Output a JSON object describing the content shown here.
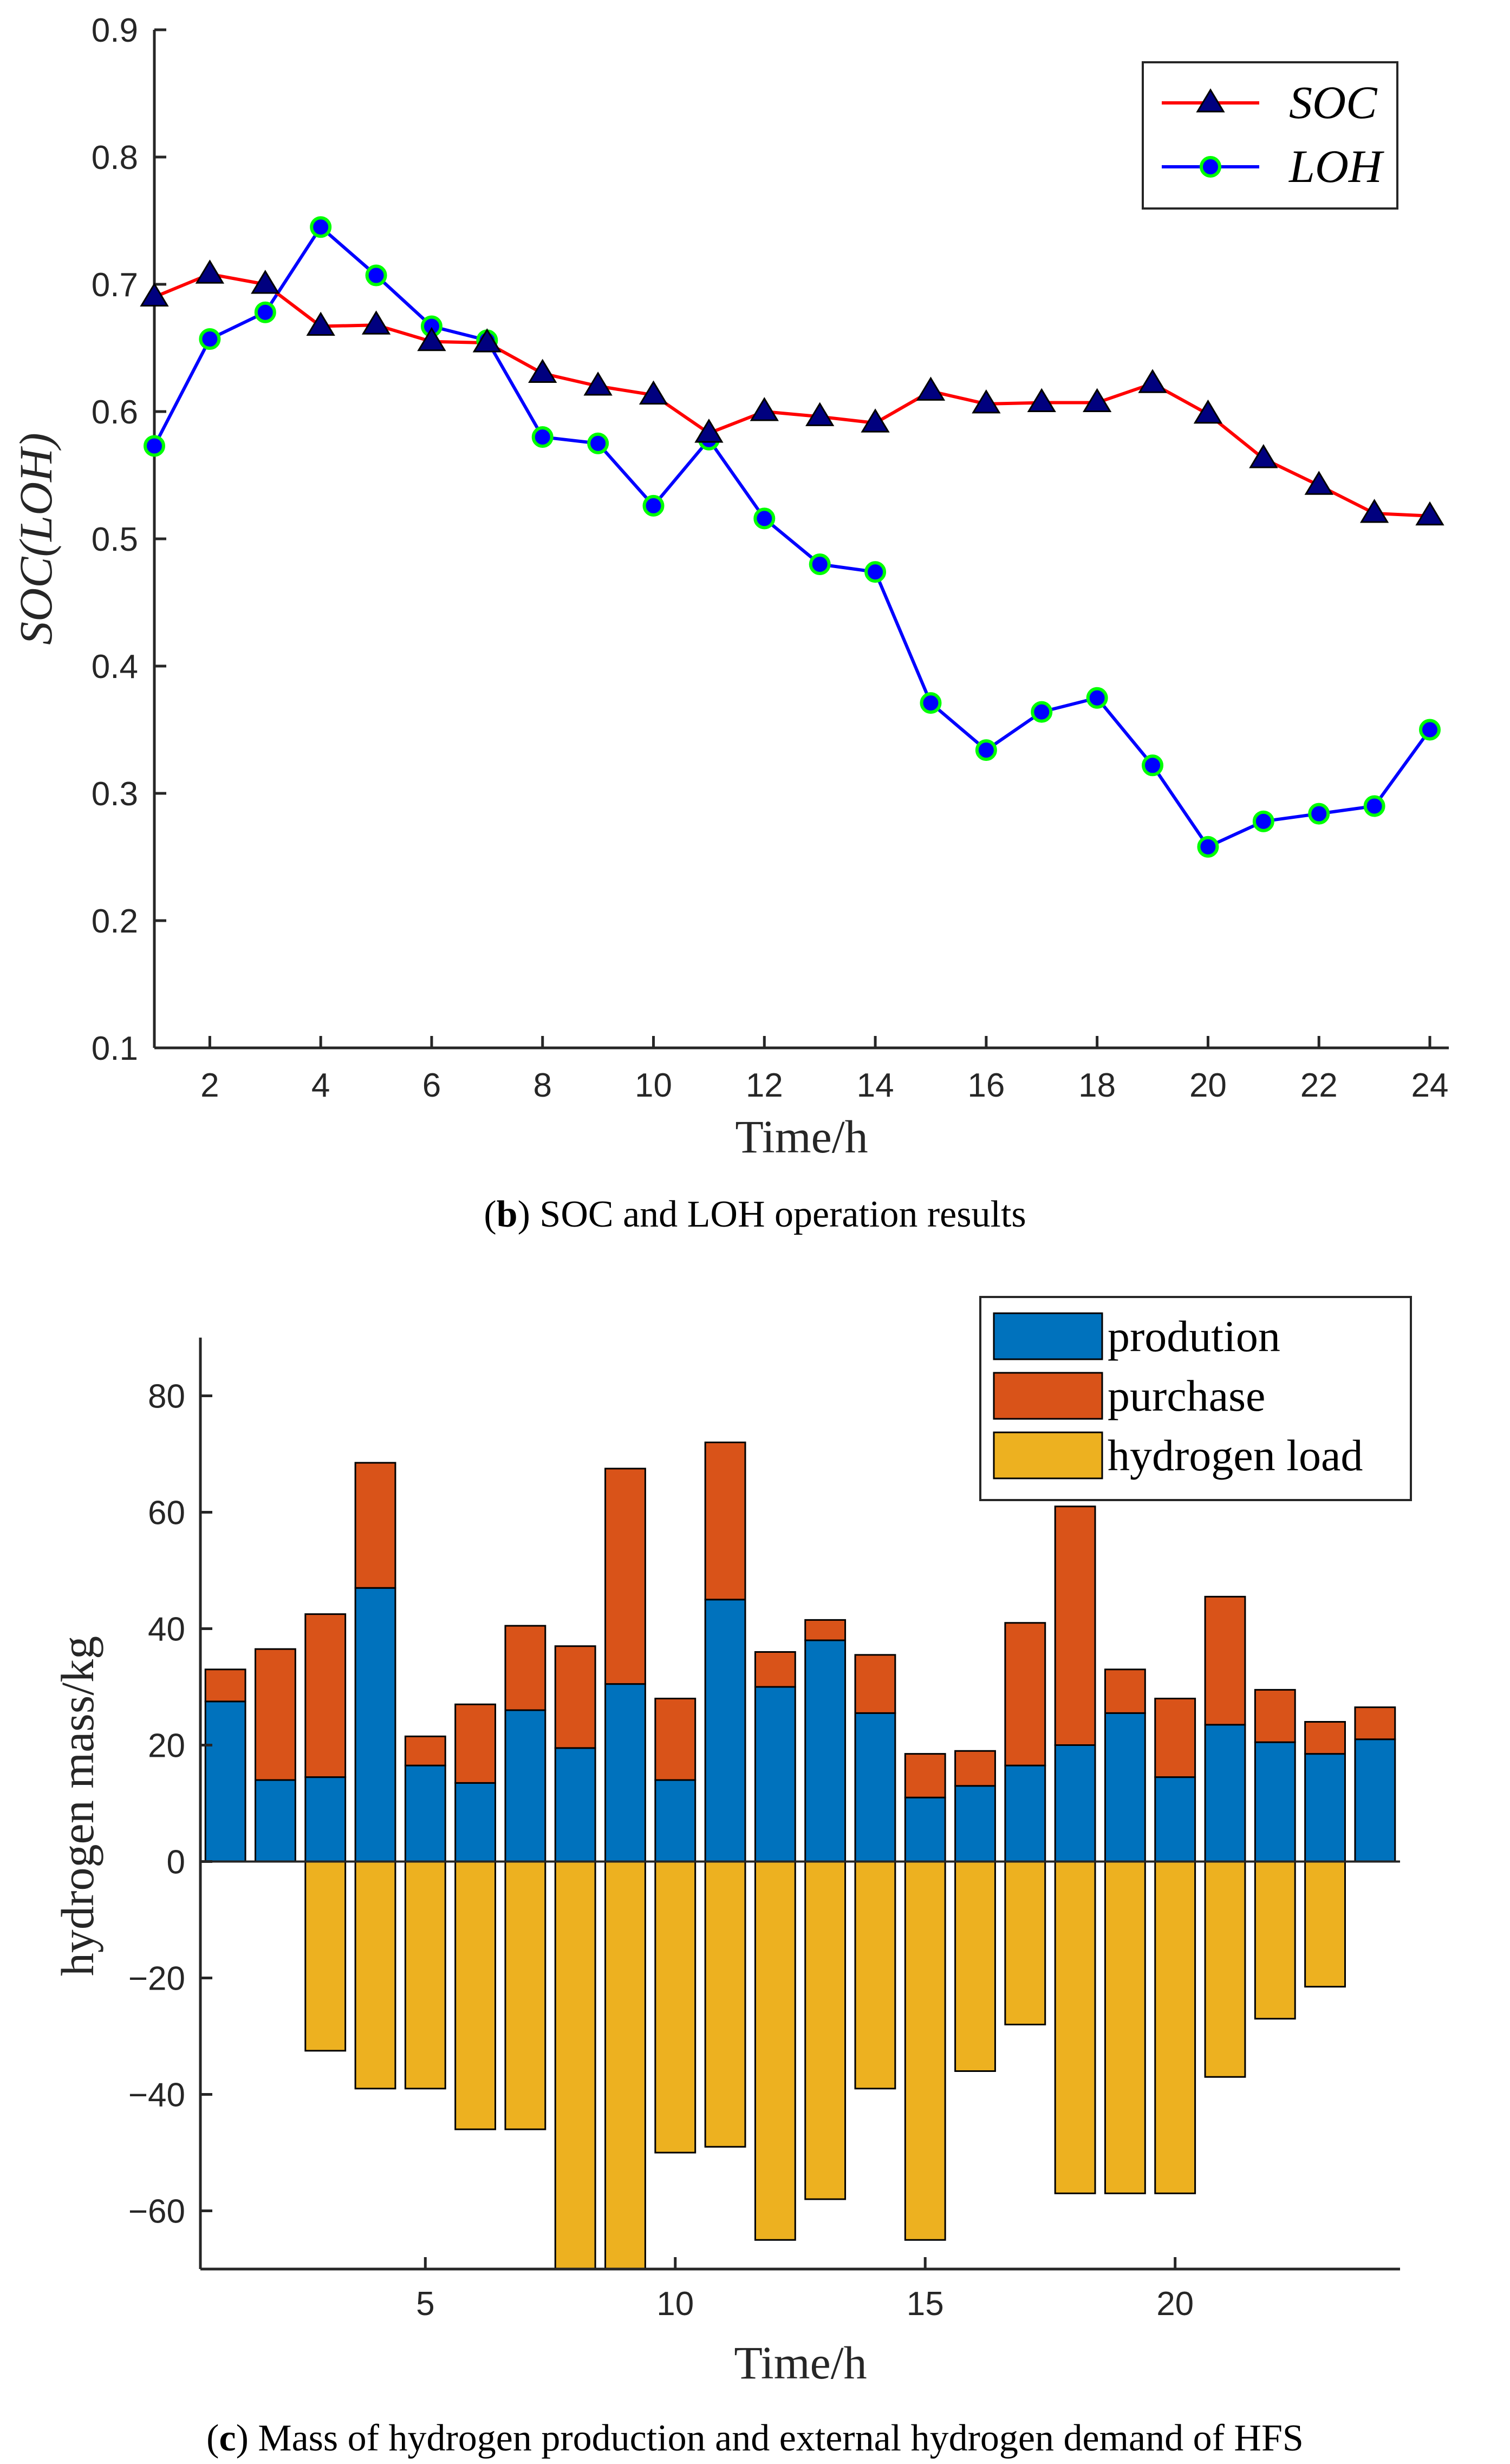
{
  "colors": {
    "soc_line": "#ff0000",
    "soc_marker": "#00007f",
    "loh_line": "#0000ff",
    "loh_marker_edge": "#00ff00",
    "loh_marker_face": "#0000ff",
    "production": "#0072bd",
    "purchase": "#d95319",
    "hydrogen_load": "#edb120",
    "axis": "#262626"
  },
  "chart_data": [
    {
      "type": "line",
      "panel": "b",
      "caption_label": "b",
      "caption_text": ") SOC and LOH operation results",
      "xlabel": "Time/h",
      "ylabel_main": "SOC(",
      "ylabel_inner": "LOH",
      "ylabel_close": ")",
      "xlim": [
        1,
        24
      ],
      "ylim": [
        0.1,
        0.9
      ],
      "xticks": [
        2,
        4,
        6,
        8,
        10,
        12,
        14,
        16,
        18,
        20,
        22,
        24
      ],
      "xtick_labels": [
        "2",
        "4",
        "6",
        "8",
        "10",
        "12",
        "14",
        "16",
        "18",
        "20",
        "22",
        "24"
      ],
      "yticks": [
        0.1,
        0.2,
        0.3,
        0.4,
        0.5,
        0.6,
        0.7,
        0.8,
        0.9
      ],
      "ytick_labels": [
        "0.1",
        "0.2",
        "0.3",
        "0.4",
        "0.5",
        "0.6",
        "0.7",
        "0.8",
        "0.9"
      ],
      "legend_position": "top-right",
      "x": [
        1,
        2,
        3,
        4,
        5,
        6,
        7,
        8,
        9,
        10,
        11,
        12,
        13,
        14,
        15,
        16,
        17,
        18,
        19,
        20,
        21,
        22,
        23,
        24
      ],
      "series": [
        {
          "name": "SOC",
          "values": [
            0.69,
            0.708,
            0.7,
            0.667,
            0.668,
            0.655,
            0.654,
            0.63,
            0.62,
            0.613,
            0.583,
            0.6,
            0.596,
            0.591,
            0.616,
            0.606,
            0.607,
            0.607,
            0.622,
            0.598,
            0.563,
            0.542,
            0.52,
            0.518
          ]
        },
        {
          "name": "LOH",
          "values": [
            0.573,
            0.657,
            0.678,
            0.745,
            0.707,
            0.667,
            0.656,
            0.58,
            0.575,
            0.526,
            0.578,
            0.516,
            0.48,
            0.474,
            0.371,
            0.334,
            0.364,
            0.375,
            0.322,
            0.258,
            0.278,
            0.284,
            0.29,
            0.35
          ]
        }
      ]
    },
    {
      "type": "bar",
      "panel": "c",
      "caption_label": "c",
      "caption_text": ") Mass of hydrogen production and external hydrogen demand of HFS",
      "xlabel": "Time/h",
      "ylabel": "hydrogen mass/kg",
      "xlim": [
        0.5,
        24.5
      ],
      "ylim": [
        -70,
        90
      ],
      "xticks": [
        5,
        10,
        15,
        20
      ],
      "xtick_labels": [
        "5",
        "10",
        "15",
        "20"
      ],
      "yticks": [
        -60,
        -40,
        -20,
        0,
        20,
        40,
        60,
        80
      ],
      "ytick_labels": [
        "−60",
        "−40",
        "−20",
        "0",
        "20",
        "40",
        "60",
        "80"
      ],
      "legend_position": "top-right",
      "stacked": true,
      "categories": [
        1,
        2,
        3,
        4,
        5,
        6,
        7,
        8,
        9,
        10,
        11,
        12,
        13,
        14,
        15,
        16,
        17,
        18,
        19,
        20,
        21,
        22,
        23,
        24
      ],
      "series": [
        {
          "name": "prodution",
          "values": [
            27.5,
            14,
            14.5,
            47,
            16.5,
            13.5,
            26,
            19.5,
            30.5,
            14,
            45,
            30,
            38,
            25.5,
            11,
            13,
            16.5,
            20,
            25.5,
            14.5,
            23.5,
            20.5,
            18.5,
            21
          ]
        },
        {
          "name": "purchase",
          "values": [
            5.5,
            22.5,
            28,
            21.5,
            5,
            13.5,
            14.5,
            17.5,
            37,
            14,
            27,
            6,
            3.5,
            10,
            7.5,
            6,
            24.5,
            41,
            7.5,
            13.5,
            22,
            9,
            5.5,
            5.5
          ]
        },
        {
          "name": "hydrogen load",
          "values": [
            0,
            0,
            -32.5,
            -39,
            -39,
            -46,
            -46,
            -70,
            -70,
            -50,
            -49,
            -65,
            -58,
            -39,
            -65,
            -36,
            -28,
            -57,
            -57,
            -57,
            -37,
            -27,
            -21.5,
            0
          ]
        }
      ]
    }
  ]
}
